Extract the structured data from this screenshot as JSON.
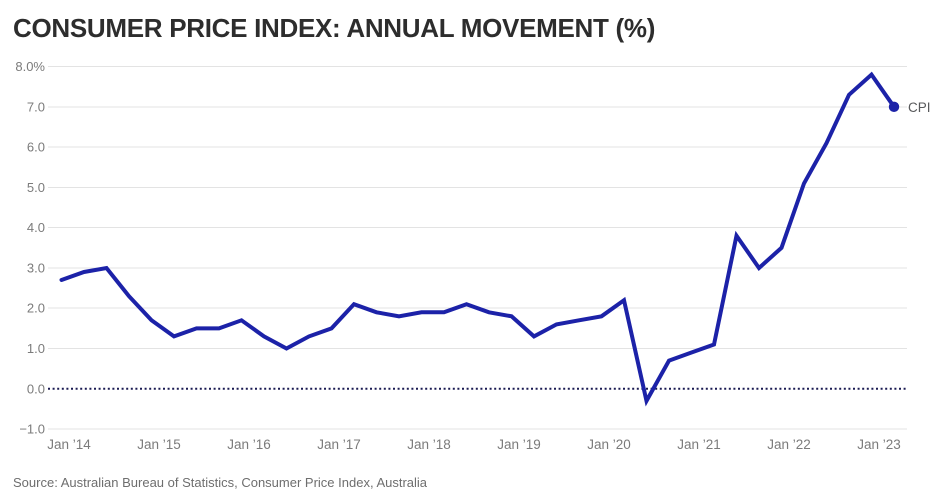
{
  "title": {
    "text": "CONSUMER PRICE INDEX: ANNUAL MOVEMENT (%)"
  },
  "source": {
    "text": "Source: Australian Bureau of Statistics, Consumer Price Index, Australia"
  },
  "chart_data": {
    "type": "line",
    "title": "CONSUMER PRICE INDEX: ANNUAL MOVEMENT (%)",
    "xlabel": "",
    "ylabel": "",
    "unit": "percent",
    "ylim": [
      -1.0,
      8.0
    ],
    "grid": true,
    "zero_line_style": "dotted",
    "legend_position": "line-end",
    "colors": {
      "line": "#1c22a8",
      "marker": "#1c22a8",
      "zero_line": "#1a1a52",
      "gridline": "#e3e3e3",
      "axis_text": "#7b7b7b",
      "title_text": "#2d2d2d",
      "source_text": "#6e6e6e",
      "series_label_text": "#58595b",
      "background": "#ffffff"
    },
    "y_ticks": [
      {
        "value": 8.0,
        "label": "8.0%"
      },
      {
        "value": 7.0,
        "label": "7.0"
      },
      {
        "value": 6.0,
        "label": "6.0"
      },
      {
        "value": 5.0,
        "label": "5.0"
      },
      {
        "value": 4.0,
        "label": "4.0"
      },
      {
        "value": 3.0,
        "label": "3.0"
      },
      {
        "value": 2.0,
        "label": "2.0"
      },
      {
        "value": 1.0,
        "label": "1.0"
      },
      {
        "value": 0.0,
        "label": "0.0"
      },
      {
        "value": -1.0,
        "label": "−1.0"
      }
    ],
    "x_ticks": [
      {
        "label": "Jan ’14",
        "month": 0
      },
      {
        "label": "Jan ’15",
        "month": 12
      },
      {
        "label": "Jan ’16",
        "month": 24
      },
      {
        "label": "Jan ’17",
        "month": 36
      },
      {
        "label": "Jan ’18",
        "month": 48
      },
      {
        "label": "Jan ’19",
        "month": 60
      },
      {
        "label": "Jan ’20",
        "month": 72
      },
      {
        "label": "Jan ’21",
        "month": 84
      },
      {
        "label": "Jan ’22",
        "month": 96
      },
      {
        "label": "Jan ’23",
        "month": 108
      }
    ],
    "series": [
      {
        "name": "CPI",
        "start_month": -1,
        "month_step": 3,
        "end_marker": true,
        "quarters": [
          "Dec 2013",
          "Mar 2014",
          "Jun 2014",
          "Sep 2014",
          "Dec 2014",
          "Mar 2015",
          "Jun 2015",
          "Sep 2015",
          "Dec 2015",
          "Mar 2016",
          "Jun 2016",
          "Sep 2016",
          "Dec 2016",
          "Mar 2017",
          "Jun 2017",
          "Sep 2017",
          "Dec 2017",
          "Mar 2018",
          "Jun 2018",
          "Sep 2018",
          "Dec 2018",
          "Mar 2019",
          "Jun 2019",
          "Sep 2019",
          "Dec 2019",
          "Mar 2020",
          "Jun 2020",
          "Sep 2020",
          "Dec 2020",
          "Mar 2021",
          "Jun 2021",
          "Sep 2021",
          "Dec 2021",
          "Mar 2022",
          "Jun 2022",
          "Sep 2022",
          "Dec 2022",
          "Mar 2023"
        ],
        "values": [
          2.7,
          2.9,
          3.0,
          2.3,
          1.7,
          1.3,
          1.5,
          1.5,
          1.7,
          1.3,
          1.0,
          1.3,
          1.5,
          2.1,
          1.9,
          1.8,
          1.9,
          1.9,
          2.1,
          1.9,
          1.8,
          1.3,
          1.6,
          1.7,
          1.8,
          2.2,
          -0.3,
          0.7,
          0.9,
          1.1,
          3.8,
          3.0,
          3.5,
          5.1,
          6.1,
          7.3,
          7.8,
          7.0
        ]
      }
    ]
  }
}
